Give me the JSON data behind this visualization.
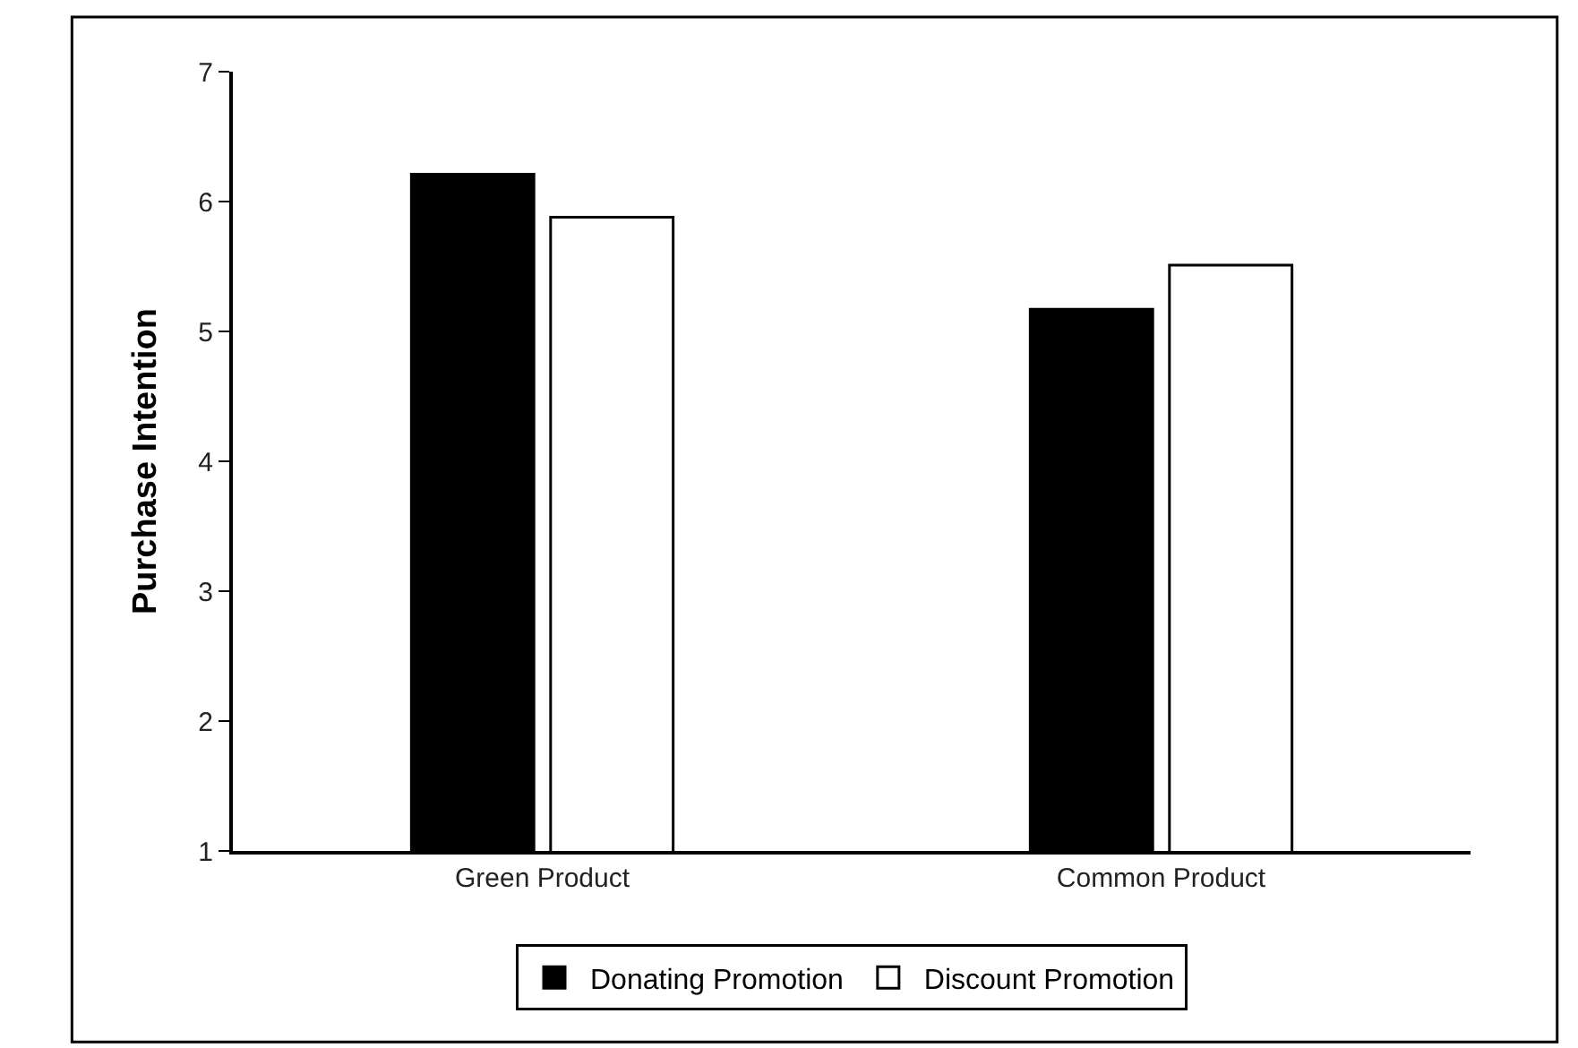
{
  "chart_data": {
    "type": "bar",
    "ylabel": "Purchase Intention",
    "categories": [
      "Green Product",
      "Common Product"
    ],
    "series": [
      {
        "name": "Donating Promotion",
        "color": "#000000",
        "values": [
          6.21,
          5.17
        ]
      },
      {
        "name": "Discount Promotion",
        "color": "#ffffff",
        "values": [
          5.88,
          5.51
        ]
      }
    ],
    "ylim": [
      1,
      7
    ],
    "yticks": [
      1,
      2,
      3,
      4,
      5,
      6,
      7
    ],
    "legend": "bottom"
  }
}
